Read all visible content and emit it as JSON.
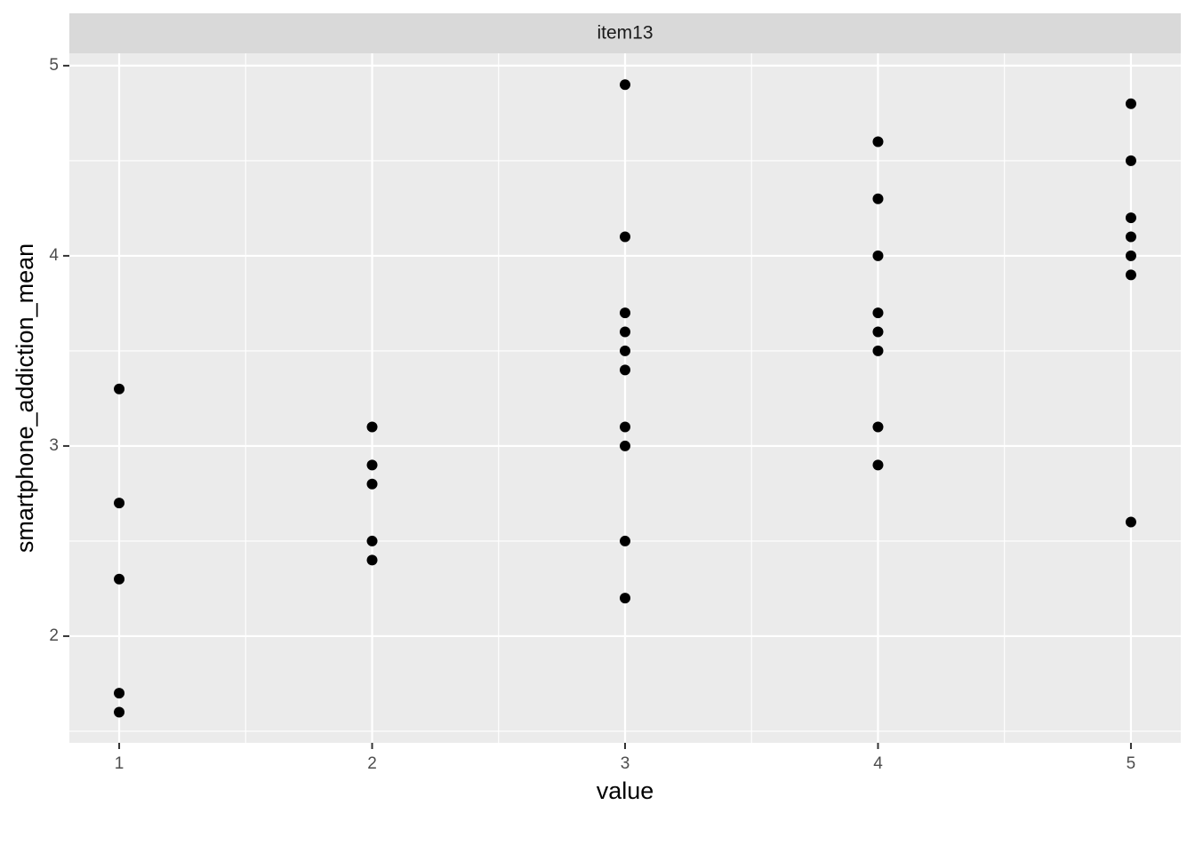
{
  "chart_data": {
    "type": "scatter",
    "strip": "item13",
    "xlabel": "value",
    "ylabel": "smartphone_addiction_mean",
    "x": [
      1,
      1,
      1,
      1,
      1,
      2,
      2,
      2,
      2,
      2,
      3,
      3,
      3,
      3,
      3,
      3,
      3,
      3,
      3,
      3,
      4,
      4,
      4,
      4,
      4,
      4,
      4,
      4,
      5,
      5,
      5,
      5,
      5,
      5,
      5
    ],
    "y": [
      3.3,
      2.7,
      2.3,
      1.7,
      1.6,
      3.1,
      2.9,
      2.8,
      2.5,
      2.4,
      4.9,
      4.1,
      3.7,
      3.6,
      3.5,
      3.4,
      3.1,
      3.0,
      2.5,
      2.2,
      4.6,
      4.3,
      4.0,
      3.7,
      3.6,
      3.5,
      3.1,
      2.9,
      4.8,
      4.5,
      4.2,
      4.1,
      4.0,
      3.9,
      2.6
    ],
    "color": "#000000",
    "xlim": [
      0.803,
      5.197
    ],
    "xticks": [
      1,
      2,
      3,
      4,
      5
    ],
    "ylim": [
      1.439,
      5.065
    ],
    "yticks": [
      2,
      3,
      4,
      5
    ],
    "grid": true
  }
}
